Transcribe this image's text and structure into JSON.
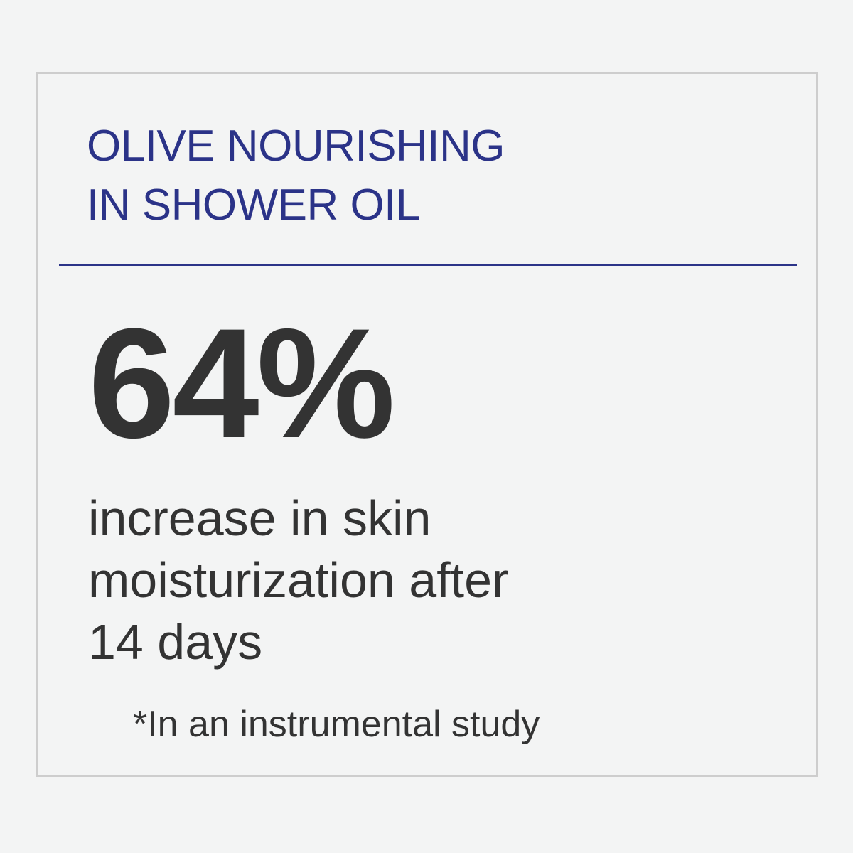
{
  "title": {
    "line1": "OLIVE NOURISHING",
    "line2": "IN SHOWER OIL"
  },
  "stat": {
    "value": "64%"
  },
  "description": {
    "line1": "increase in skin",
    "line2": "moisturization after",
    "line3": "14 days"
  },
  "footnote": "*In an instrumental study",
  "colors": {
    "accent": "#2b3388",
    "text": "#333333",
    "background": "#f3f4f4",
    "border": "#cdcdcd"
  }
}
